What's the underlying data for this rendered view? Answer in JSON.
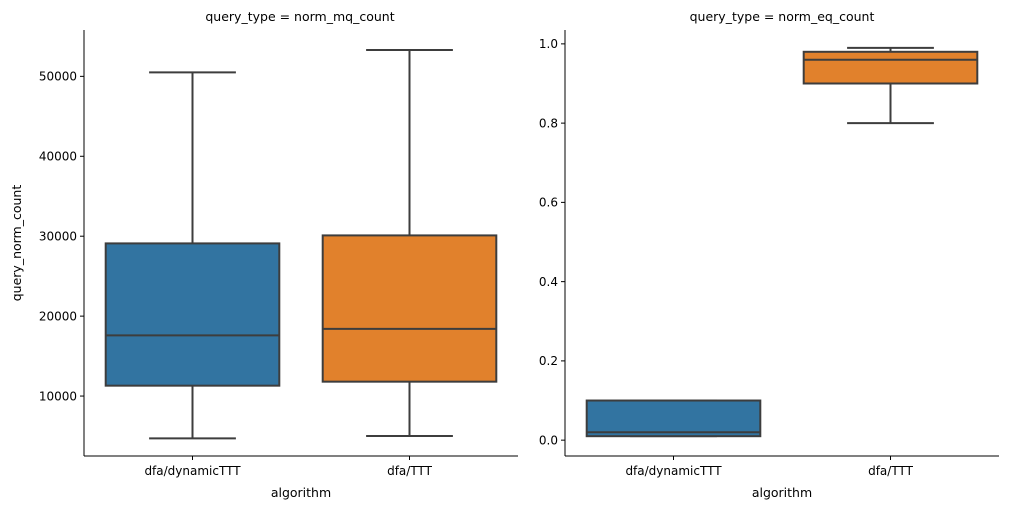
{
  "chart_data": [
    {
      "type": "box",
      "title": "query_type = norm_mq_count",
      "xlabel": "algorithm",
      "ylabel": "query_norm_count",
      "ylim": [
        2500,
        55800
      ],
      "yticks": [
        10000,
        20000,
        30000,
        40000,
        50000
      ],
      "ytick_labels": [
        "10000",
        "20000",
        "30000",
        "40000",
        "50000"
      ],
      "categories": [
        "dfa/dynamicTTT",
        "dfa/TTT"
      ],
      "colors": [
        "#3274a1",
        "#e1812c"
      ],
      "boxes": [
        {
          "category": "dfa/dynamicTTT",
          "whisker_low": 4700,
          "q1": 11300,
          "median": 17600,
          "q3": 29100,
          "whisker_high": 50500
        },
        {
          "category": "dfa/TTT",
          "whisker_low": 5000,
          "q1": 11800,
          "median": 18400,
          "q3": 30100,
          "whisker_high": 53300
        }
      ]
    },
    {
      "type": "box",
      "title": "query_type = norm_eq_count",
      "xlabel": "algorithm",
      "ylabel": "",
      "ylim": [
        -0.04,
        1.035
      ],
      "yticks": [
        0.0,
        0.2,
        0.4,
        0.6,
        0.8,
        1.0
      ],
      "ytick_labels": [
        "0.0",
        "0.2",
        "0.4",
        "0.6",
        "0.8",
        "1.0"
      ],
      "categories": [
        "dfa/dynamicTTT",
        "dfa/TTT"
      ],
      "colors": [
        "#3274a1",
        "#e1812c"
      ],
      "boxes": [
        {
          "category": "dfa/dynamicTTT",
          "whisker_low": 0.01,
          "q1": 0.01,
          "median": 0.02,
          "q3": 0.1,
          "whisker_high": 0.1
        },
        {
          "category": "dfa/TTT",
          "whisker_low": 0.8,
          "q1": 0.9,
          "median": 0.96,
          "q3": 0.98,
          "whisker_high": 0.99
        }
      ]
    }
  ]
}
